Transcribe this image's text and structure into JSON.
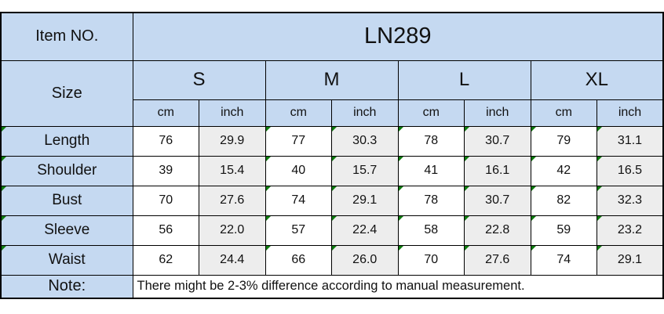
{
  "colors": {
    "header_fill": "#C5D9F1",
    "alt_cell_fill": "#EDEDED",
    "flag_green": "#0E7A0E",
    "border": "#000000",
    "background": "#FFFFFF"
  },
  "table": {
    "item_no_label": "Item NO.",
    "item_no_value": "LN289",
    "size_label": "Size",
    "size_columns": [
      "S",
      "M",
      "L",
      "XL"
    ],
    "unit_labels": [
      "cm",
      "inch"
    ],
    "measurements": [
      {
        "label": "Length",
        "values": [
          "76",
          "29.9",
          "77",
          "30.3",
          "78",
          "30.7",
          "79",
          "31.1"
        ]
      },
      {
        "label": "Shoulder",
        "values": [
          "39",
          "15.4",
          "40",
          "15.7",
          "41",
          "16.1",
          "42",
          "16.5"
        ]
      },
      {
        "label": "Bust",
        "values": [
          "70",
          "27.6",
          "74",
          "29.1",
          "78",
          "30.7",
          "82",
          "32.3"
        ]
      },
      {
        "label": "Sleeve",
        "values": [
          "56",
          "22.0",
          "57",
          "22.4",
          "58",
          "22.8",
          "59",
          "23.2"
        ]
      },
      {
        "label": "Waist",
        "values": [
          "62",
          "24.4",
          "66",
          "26.0",
          "70",
          "27.6",
          "74",
          "29.1"
        ]
      }
    ],
    "note_label": "Note:",
    "note_text": "There might be 2-3% difference according to manual measurement."
  }
}
